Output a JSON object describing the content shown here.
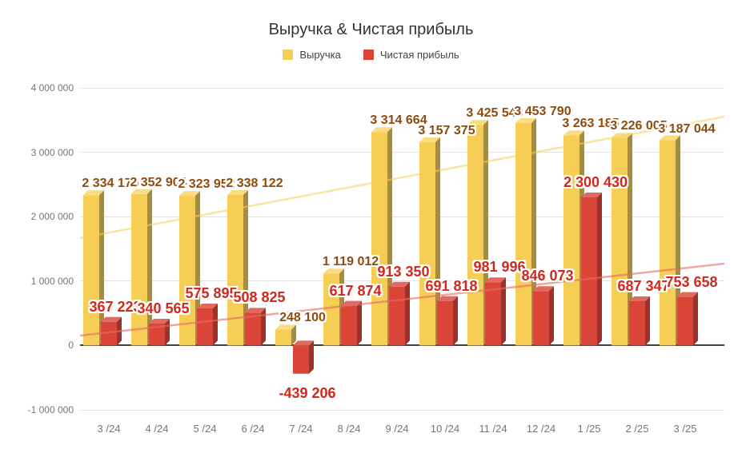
{
  "chart_data": {
    "type": "bar",
    "title": "Выручка & Чистая прибыль",
    "legend_position": "top",
    "grid": true,
    "categories": [
      "3 /24",
      "4 /24",
      "5 /24",
      "6 /24",
      "7 /24",
      "8 /24",
      "9 /24",
      "10 /24",
      "11 /24",
      "12 /24",
      "1 /25",
      "2 /25",
      "3 /25"
    ],
    "series": [
      {
        "name": "Выручка",
        "color": "#F6CE55",
        "color_side": "#A88C3D",
        "color_top": "#F9DD85",
        "label_color": "#8F4B0E",
        "values": [
          2334175,
          2352904,
          2323952,
          2338122,
          248100,
          1119012,
          3314664,
          3157375,
          3425543,
          3453790,
          3263185,
          3226005,
          3187044
        ],
        "labels": [
          "2 334 175",
          "2 352 904",
          "2 323 952",
          "2 338 122",
          "248 100",
          "1 119 012",
          "3 314 664",
          "3 157 375",
          "3 425 543",
          "3 453 790",
          "3 263 185",
          "3 226 005",
          "3 187 044"
        ]
      },
      {
        "name": "Чистая прибыль",
        "color": "#DB4537",
        "color_side": "#9E322A",
        "color_top": "#E2695F",
        "label_color": "#D0281C",
        "values": [
          367223,
          340565,
          575895,
          508825,
          -439206,
          617874,
          913350,
          691818,
          981996,
          846073,
          2300430,
          687347,
          753658
        ],
        "labels": [
          "367 223",
          "340 565",
          "575 895",
          "508 825",
          "-439 206",
          "617 874",
          "913 350",
          "691 818",
          "981 996",
          "846 073",
          "2 300 430",
          "687 347",
          "753 658"
        ]
      }
    ],
    "y_axis": {
      "min": -1000000,
      "max": 4000000,
      "tick_step": 1000000,
      "tick_labels": [
        "4 000 000",
        "3 000 000",
        "2 000 000",
        "1 000 000",
        "0",
        "-1 000 000"
      ]
    },
    "trendlines": [
      {
        "series": "Выручка",
        "color": "rgba(246,206,85,0.55)"
      },
      {
        "series": "Чистая прибыль",
        "color": "rgba(226,106,98,0.6)"
      }
    ]
  }
}
